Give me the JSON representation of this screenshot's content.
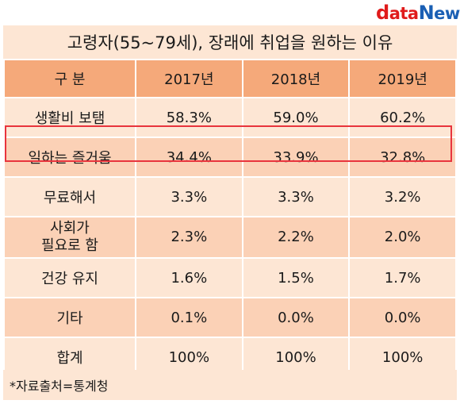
{
  "logo": {
    "d": "d",
    "ata": "ata",
    "n": "N",
    "ews": "ews"
  },
  "title": "고령자(55~79세), 장래에 취업을 원하는 이유",
  "header": [
    "구  분",
    "2017년",
    "2018년",
    "2019년"
  ],
  "rows": [
    [
      "생활비 보탬",
      "58.3%",
      "59.0%",
      "60.2%"
    ],
    [
      "일하는 즐거움",
      "34.4%",
      "33.9%",
      "32.8%"
    ],
    [
      "무료해서",
      "3.3%",
      "3.3%",
      "3.2%"
    ],
    [
      "사회가 필요로 함",
      "2.3%",
      "2.2%",
      "2.0%"
    ],
    [
      "건강 유지",
      "1.6%",
      "1.5%",
      "1.7%"
    ],
    [
      "기타",
      "0.1%",
      "0.0%",
      "0.0%"
    ],
    [
      "합계",
      "100%",
      "100%",
      "100%"
    ]
  ],
  "row3_label_lines": [
    "사회가",
    "필요로 함"
  ],
  "footer": "*자료출처=통계청",
  "colors": {
    "header": "#f5a97a",
    "row_light": "#fde6d4",
    "row_dark": "#fbd1b6",
    "highlight": "#e8343d"
  }
}
